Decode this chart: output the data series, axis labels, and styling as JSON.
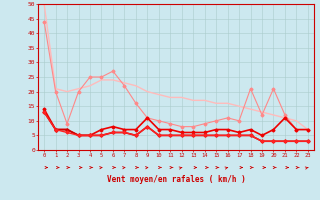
{
  "background_color": "#cce8ef",
  "grid_color": "#aacccc",
  "xlabel": "Vent moyen/en rafales ( km/h )",
  "xlabel_color": "#cc0000",
  "tick_color": "#cc0000",
  "axis_color": "#cc0000",
  "xlim": [
    -0.5,
    23.5
  ],
  "ylim": [
    0,
    50
  ],
  "yticks": [
    0,
    5,
    10,
    15,
    20,
    25,
    30,
    35,
    40,
    45,
    50
  ],
  "xticks": [
    0,
    1,
    2,
    3,
    4,
    5,
    6,
    7,
    8,
    9,
    10,
    11,
    12,
    13,
    14,
    15,
    16,
    17,
    18,
    19,
    20,
    21,
    22,
    23
  ],
  "series": [
    {
      "x": [
        0,
        1,
        2,
        3,
        4,
        5,
        6,
        7,
        8,
        9,
        10,
        11,
        12,
        13,
        14,
        15,
        16,
        17,
        18,
        19,
        20,
        21,
        22,
        23
      ],
      "y": [
        50,
        21,
        20,
        21,
        22,
        24,
        24,
        23,
        22,
        20,
        19,
        18,
        18,
        17,
        17,
        16,
        16,
        15,
        14,
        13,
        12,
        11,
        10,
        7
      ],
      "color": "#ffbbbb",
      "lw": 1.0,
      "marker": null
    },
    {
      "x": [
        0,
        1,
        2,
        3,
        4,
        5,
        6,
        7,
        8,
        9,
        10,
        11,
        12,
        13,
        14,
        15,
        16,
        17,
        18,
        19,
        20,
        21,
        22,
        23
      ],
      "y": [
        44,
        20,
        9,
        20,
        25,
        25,
        27,
        22,
        16,
        11,
        10,
        9,
        8,
        8,
        9,
        10,
        11,
        10,
        21,
        12,
        21,
        12,
        7,
        7
      ],
      "color": "#ff8888",
      "lw": 0.8,
      "marker": "D",
      "ms": 1.5
    },
    {
      "x": [
        0,
        1,
        2,
        3,
        4,
        5,
        6,
        7,
        8,
        9,
        10,
        11,
        12,
        13,
        14,
        15,
        16,
        17,
        18,
        19,
        20,
        21,
        22,
        23
      ],
      "y": [
        14,
        7,
        7,
        5,
        5,
        7,
        8,
        7,
        7,
        11,
        7,
        7,
        6,
        6,
        6,
        7,
        7,
        6,
        7,
        5,
        7,
        11,
        7,
        7
      ],
      "color": "#ee0000",
      "lw": 1.2,
      "marker": "D",
      "ms": 1.5
    },
    {
      "x": [
        0,
        1,
        2,
        3,
        4,
        5,
        6,
        7,
        8,
        9,
        10,
        11,
        12,
        13,
        14,
        15,
        16,
        17,
        18,
        19,
        20,
        21,
        22,
        23
      ],
      "y": [
        13,
        7,
        7,
        5,
        5,
        5,
        6,
        6,
        5,
        8,
        5,
        5,
        5,
        5,
        5,
        5,
        5,
        5,
        5,
        3,
        3,
        3,
        3,
        3
      ],
      "color": "#cc0000",
      "lw": 1.2,
      "marker": "D",
      "ms": 1.5
    },
    {
      "x": [
        0,
        1,
        2,
        3,
        4,
        5,
        6,
        7,
        8,
        9,
        10,
        11,
        12,
        13,
        14,
        15,
        16,
        17,
        18,
        19,
        20,
        21,
        22,
        23
      ],
      "y": [
        13,
        7,
        6,
        5,
        5,
        5,
        6,
        6,
        5,
        8,
        5,
        5,
        5,
        5,
        5,
        5,
        5,
        5,
        5,
        3,
        3,
        3,
        3,
        3
      ],
      "color": "#ff2222",
      "lw": 1.0,
      "marker": "D",
      "ms": 1.5
    }
  ],
  "arrow_angles": [
    0,
    0,
    45,
    0,
    45,
    70,
    45,
    70,
    45,
    70,
    45,
    45,
    80,
    0,
    0,
    45,
    80,
    0,
    45,
    0,
    45,
    0,
    45,
    80
  ],
  "arrow_color": "#cc0000"
}
